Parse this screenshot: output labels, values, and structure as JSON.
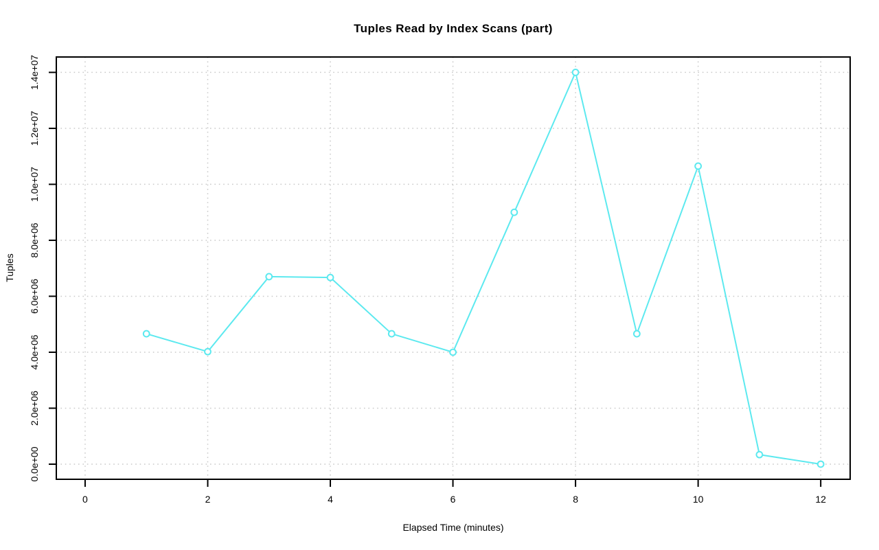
{
  "chart_data": {
    "type": "line",
    "title": "Tuples Read by Index Scans (part)",
    "xlabel": "Elapsed Time (minutes)",
    "ylabel": "Tuples",
    "x": [
      1,
      2,
      3,
      4,
      5,
      6,
      7,
      8,
      9,
      10,
      11,
      12
    ],
    "values": [
      4660000,
      4020000,
      6700000,
      6670000,
      4660000,
      4000000,
      9000000,
      14000000,
      4660000,
      10650000,
      340000,
      0
    ],
    "x_ticks": {
      "values": [
        0,
        2,
        4,
        6,
        8,
        10,
        12
      ],
      "labels": [
        "0",
        "2",
        "4",
        "6",
        "8",
        "10",
        "12"
      ]
    },
    "y_ticks": {
      "values": [
        0,
        2000000,
        4000000,
        6000000,
        8000000,
        10000000,
        12000000,
        14000000
      ],
      "labels": [
        "0.0e+00",
        "2.0e+06",
        "4.0e+06",
        "6.0e+06",
        "8.0e+06",
        "1.0e+07",
        "1.2e+07",
        "1.4e+07"
      ]
    },
    "xlim": [
      -0.47,
      12.48
    ],
    "ylim": [
      -540000,
      14550000
    ],
    "grid": true,
    "legend": "none",
    "marker": "open-circle",
    "line_color": "#5ce9ef",
    "grid_color": "#c9c9c9",
    "axis_color": "#000000",
    "background": "#ffffff"
  }
}
